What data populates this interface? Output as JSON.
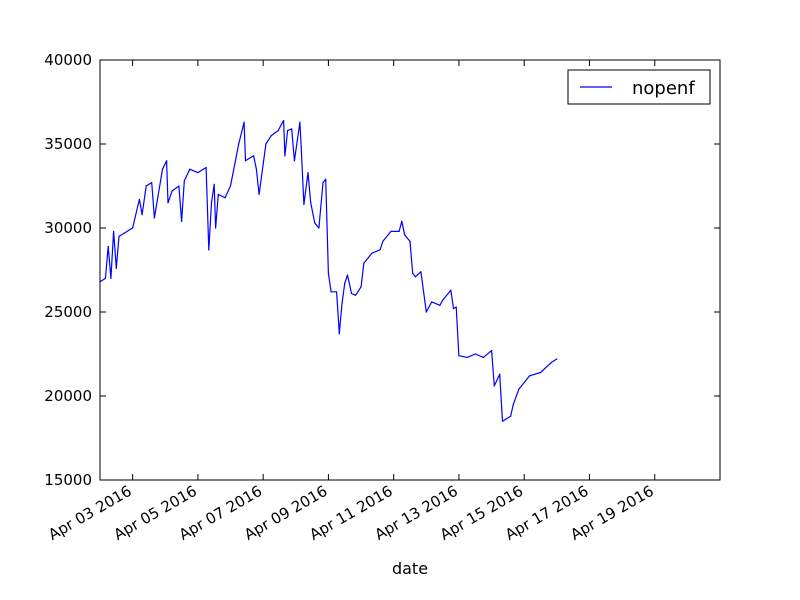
{
  "chart_data": {
    "type": "line",
    "title": "",
    "xlabel": "date",
    "ylabel": "",
    "xlim": [
      "2016-04-02",
      "2016-04-21"
    ],
    "ylim": [
      15000,
      40000
    ],
    "y_ticks": [
      15000,
      20000,
      25000,
      30000,
      35000,
      40000
    ],
    "x_ticks": [
      {
        "date": "2016-04-03",
        "label": "Apr 03 2016"
      },
      {
        "date": "2016-04-05",
        "label": "Apr 05 2016"
      },
      {
        "date": "2016-04-07",
        "label": "Apr 07 2016"
      },
      {
        "date": "2016-04-09",
        "label": "Apr 09 2016"
      },
      {
        "date": "2016-04-11",
        "label": "Apr 11 2016"
      },
      {
        "date": "2016-04-13",
        "label": "Apr 13 2016"
      },
      {
        "date": "2016-04-15",
        "label": "Apr 15 2016"
      },
      {
        "date": "2016-04-17",
        "label": "Apr 17 2016"
      },
      {
        "date": "2016-04-19",
        "label": "Apr 19 2016"
      }
    ],
    "grid": false,
    "legend": "top-right",
    "series": [
      {
        "name": "nopenf",
        "color": "#0000ff",
        "points": [
          [
            "2016-04-02 00:00",
            26800
          ],
          [
            "2016-04-02 04:00",
            27000
          ],
          [
            "2016-04-02 06:00",
            28900
          ],
          [
            "2016-04-02 08:00",
            27000
          ],
          [
            "2016-04-02 10:00",
            29800
          ],
          [
            "2016-04-02 12:00",
            27600
          ],
          [
            "2016-04-02 14:00",
            29500
          ],
          [
            "2016-04-02 18:00",
            29700
          ],
          [
            "2016-04-03 00:00",
            30000
          ],
          [
            "2016-04-03 05:00",
            31700
          ],
          [
            "2016-04-03 07:00",
            30800
          ],
          [
            "2016-04-03 10:00",
            32500
          ],
          [
            "2016-04-03 14:00",
            32700
          ],
          [
            "2016-04-03 16:00",
            30600
          ],
          [
            "2016-04-03 22:00",
            33500
          ],
          [
            "2016-04-04 01:00",
            34000
          ],
          [
            "2016-04-04 02:00",
            31500
          ],
          [
            "2016-04-04 05:00",
            32200
          ],
          [
            "2016-04-04 10:00",
            32500
          ],
          [
            "2016-04-04 12:00",
            30400
          ],
          [
            "2016-04-04 14:00",
            32800
          ],
          [
            "2016-04-04 18:00",
            33500
          ],
          [
            "2016-04-05 00:00",
            33300
          ],
          [
            "2016-04-05 06:00",
            33600
          ],
          [
            "2016-04-05 08:00",
            28700
          ],
          [
            "2016-04-05 10:00",
            31500
          ],
          [
            "2016-04-05 12:00",
            32600
          ],
          [
            "2016-04-05 13:00",
            30000
          ],
          [
            "2016-04-05 15:00",
            32000
          ],
          [
            "2016-04-05 20:00",
            31800
          ],
          [
            "2016-04-06 00:00",
            32500
          ],
          [
            "2016-04-06 06:00",
            35000
          ],
          [
            "2016-04-06 10:00",
            36300
          ],
          [
            "2016-04-06 11:00",
            34000
          ],
          [
            "2016-04-06 15:00",
            34200
          ],
          [
            "2016-04-06 17:00",
            34300
          ],
          [
            "2016-04-06 19:00",
            33500
          ],
          [
            "2016-04-06 21:00",
            32000
          ],
          [
            "2016-04-07 02:00",
            35000
          ],
          [
            "2016-04-07 06:00",
            35500
          ],
          [
            "2016-04-07 11:00",
            35800
          ],
          [
            "2016-04-07 15:00",
            36400
          ],
          [
            "2016-04-07 16:00",
            34300
          ],
          [
            "2016-04-07 18:00",
            35800
          ],
          [
            "2016-04-07 21:00",
            35900
          ],
          [
            "2016-04-07 23:00",
            34000
          ],
          [
            "2016-04-08 03:00",
            36300
          ],
          [
            "2016-04-08 04:00",
            34800
          ],
          [
            "2016-04-08 06:00",
            31400
          ],
          [
            "2016-04-08 09:00",
            33300
          ],
          [
            "2016-04-08 11:00",
            31500
          ],
          [
            "2016-04-08 14:00",
            30300
          ],
          [
            "2016-04-08 17:00",
            30000
          ],
          [
            "2016-04-08 20:00",
            32700
          ],
          [
            "2016-04-08 22:00",
            32900
          ],
          [
            "2016-04-09 00:00",
            27300
          ],
          [
            "2016-04-09 02:00",
            26200
          ],
          [
            "2016-04-09 06:00",
            26200
          ],
          [
            "2016-04-09 08:00",
            23700
          ],
          [
            "2016-04-09 10:00",
            25500
          ],
          [
            "2016-04-09 12:00",
            26700
          ],
          [
            "2016-04-09 14:00",
            27200
          ],
          [
            "2016-04-09 17:00",
            26100
          ],
          [
            "2016-04-09 20:00",
            26000
          ],
          [
            "2016-04-10 00:00",
            26500
          ],
          [
            "2016-04-10 02:00",
            27900
          ],
          [
            "2016-04-10 08:00",
            28500
          ],
          [
            "2016-04-10 14:00",
            28700
          ],
          [
            "2016-04-10 16:00",
            29200
          ],
          [
            "2016-04-10 22:00",
            29800
          ],
          [
            "2016-04-11 04:00",
            29800
          ],
          [
            "2016-04-11 06:00",
            30400
          ],
          [
            "2016-04-11 08:00",
            29600
          ],
          [
            "2016-04-11 12:00",
            29200
          ],
          [
            "2016-04-11 14:00",
            27300
          ],
          [
            "2016-04-11 16:00",
            27100
          ],
          [
            "2016-04-11 20:00",
            27400
          ],
          [
            "2016-04-12 00:00",
            25000
          ],
          [
            "2016-04-12 04:00",
            25600
          ],
          [
            "2016-04-12 10:00",
            25400
          ],
          [
            "2016-04-12 12:00",
            25700
          ],
          [
            "2016-04-12 18:00",
            26300
          ],
          [
            "2016-04-12 20:00",
            25200
          ],
          [
            "2016-04-12 22:00",
            25300
          ],
          [
            "2016-04-13 00:00",
            22400
          ],
          [
            "2016-04-13 06:00",
            22300
          ],
          [
            "2016-04-13 12:00",
            22500
          ],
          [
            "2016-04-13 18:00",
            22300
          ],
          [
            "2016-04-14 00:00",
            22700
          ],
          [
            "2016-04-14 02:00",
            20600
          ],
          [
            "2016-04-14 06:00",
            21300
          ],
          [
            "2016-04-14 08:00",
            18500
          ],
          [
            "2016-04-14 14:00",
            18800
          ],
          [
            "2016-04-14 16:00",
            19500
          ],
          [
            "2016-04-14 20:00",
            20400
          ],
          [
            "2016-04-15 04:00",
            21200
          ],
          [
            "2016-04-15 12:00",
            21400
          ],
          [
            "2016-04-15 20:00",
            22000
          ],
          [
            "2016-04-16 00:00",
            22200
          ]
        ]
      }
    ]
  }
}
